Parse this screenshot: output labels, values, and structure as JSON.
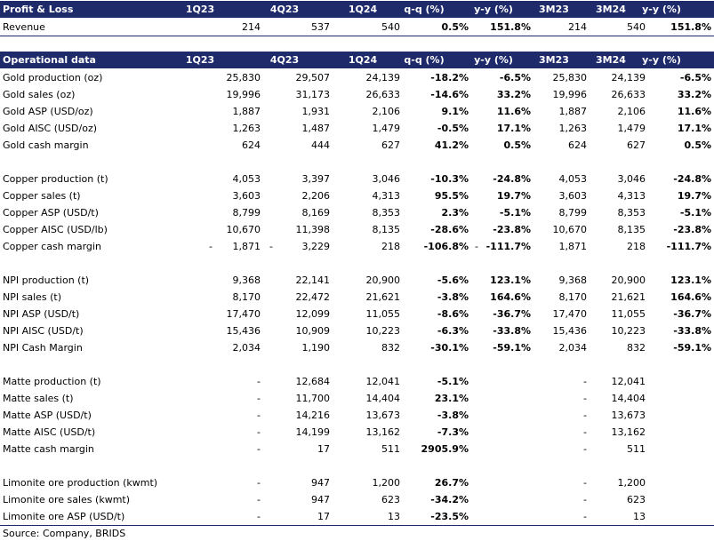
{
  "pl": {
    "header": {
      "title": "Profit & Loss",
      "cols": [
        "1Q23",
        "4Q23",
        "1Q24",
        "q-q (%)",
        "y-y (%)",
        "3M23",
        "3M24",
        "y-y (%)"
      ]
    },
    "rows": [
      {
        "label": "Revenue",
        "v": [
          "214",
          "537",
          "540",
          "0.5%",
          "151.8%",
          "214",
          "540",
          "151.8%"
        ]
      }
    ]
  },
  "ops": {
    "header": {
      "title": "Operational data",
      "cols": [
        "1Q23",
        "4Q23",
        "1Q24",
        "q-q (%)",
        "y-y (%)",
        "3M23",
        "3M24",
        "y-y (%)"
      ]
    },
    "groups": [
      [
        {
          "label": "Gold production (oz)",
          "v": [
            "25,830",
            "29,507",
            "24,139",
            "-18.2%",
            "-6.5%",
            "25,830",
            "24,139",
            "-6.5%"
          ]
        },
        {
          "label": "Gold sales (oz)",
          "v": [
            "19,996",
            "31,173",
            "26,633",
            "-14.6%",
            "33.2%",
            "19,996",
            "26,633",
            "33.2%"
          ]
        },
        {
          "label": "Gold ASP (USD/oz)",
          "v": [
            "1,887",
            "1,931",
            "2,106",
            "9.1%",
            "11.6%",
            "1,887",
            "2,106",
            "11.6%"
          ]
        },
        {
          "label": "Gold AISC (USD/oz)",
          "v": [
            "1,263",
            "1,487",
            "1,479",
            "-0.5%",
            "17.1%",
            "1,263",
            "1,479",
            "17.1%"
          ]
        },
        {
          "label": "Gold cash margin",
          "v": [
            "624",
            "444",
            "627",
            "41.2%",
            "0.5%",
            "624",
            "627",
            "0.5%"
          ]
        }
      ],
      [
        {
          "label": "Copper production (t)",
          "v": [
            "4,053",
            "3,397",
            "3,046",
            "-10.3%",
            "-24.8%",
            "4,053",
            "3,046",
            "-24.8%"
          ]
        },
        {
          "label": "Copper sales (t)",
          "v": [
            "3,603",
            "2,206",
            "4,313",
            "95.5%",
            "19.7%",
            "3,603",
            "4,313",
            "19.7%"
          ]
        },
        {
          "label": "Copper ASP (USD/t)",
          "v": [
            "8,799",
            "8,169",
            "8,353",
            "2.3%",
            "-5.1%",
            "8,799",
            "8,353",
            "-5.1%"
          ]
        },
        {
          "label": "Copper AISC (USD/lb)",
          "v": [
            "10,670",
            "11,398",
            "8,135",
            "-28.6%",
            "-23.8%",
            "10,670",
            "8,135",
            "-23.8%"
          ]
        },
        {
          "label": "Copper cash margin",
          "v": [
            "1,871",
            "3,229",
            "218",
            "-106.8%",
            "-111.7%",
            "1,871",
            "218",
            "-111.7%"
          ],
          "pre1": "-",
          "pre2": "-",
          "pre6": "-"
        }
      ],
      [
        {
          "label": "NPI production (t)",
          "v": [
            "9,368",
            "22,141",
            "20,900",
            "-5.6%",
            "123.1%",
            "9,368",
            "20,900",
            "123.1%"
          ]
        },
        {
          "label": "NPI sales (t)",
          "v": [
            "8,170",
            "22,472",
            "21,621",
            "-3.8%",
            "164.6%",
            "8,170",
            "21,621",
            "164.6%"
          ]
        },
        {
          "label": "NPI ASP (USD/t)",
          "v": [
            "17,470",
            "12,099",
            "11,055",
            "-8.6%",
            "-36.7%",
            "17,470",
            "11,055",
            "-36.7%"
          ]
        },
        {
          "label": "NPI AISC (USD/t)",
          "v": [
            "15,436",
            "10,909",
            "10,223",
            "-6.3%",
            "-33.8%",
            "15,436",
            "10,223",
            "-33.8%"
          ]
        },
        {
          "label": "NPI Cash Margin",
          "v": [
            "2,034",
            "1,190",
            "832",
            "-30.1%",
            "-59.1%",
            "2,034",
            "832",
            "-59.1%"
          ]
        }
      ],
      [
        {
          "label": "Matte production (t)",
          "v": [
            "-",
            "12,684",
            "12,041",
            "-5.1%",
            "",
            "-",
            "12,041",
            ""
          ]
        },
        {
          "label": "Matte sales (t)",
          "v": [
            "-",
            "11,700",
            "14,404",
            "23.1%",
            "",
            "-",
            "14,404",
            ""
          ]
        },
        {
          "label": "Matte ASP (USD/t)",
          "v": [
            "-",
            "14,216",
            "13,673",
            "-3.8%",
            "",
            "-",
            "13,673",
            ""
          ]
        },
        {
          "label": "Matte AISC (USD/t)",
          "v": [
            "-",
            "14,199",
            "13,162",
            "-7.3%",
            "",
            "-",
            "13,162",
            ""
          ]
        },
        {
          "label": "Matte cash margin",
          "v": [
            "-",
            "17",
            "511",
            "2905.9%",
            "",
            "-",
            "511",
            ""
          ]
        }
      ],
      [
        {
          "label": "Limonite ore production (kwmt)",
          "v": [
            "-",
            "947",
            "1,200",
            "26.7%",
            "",
            "-",
            "1,200",
            ""
          ]
        },
        {
          "label": "Limonite ore sales (kwmt)",
          "v": [
            "-",
            "947",
            "623",
            "-34.2%",
            "",
            "-",
            "623",
            ""
          ]
        },
        {
          "label": "Limonite ore ASP (USD/t)",
          "v": [
            "-",
            "17",
            "13",
            "-23.5%",
            "",
            "-",
            "13",
            ""
          ]
        }
      ]
    ]
  },
  "source": "Source: Company, BRIDS"
}
